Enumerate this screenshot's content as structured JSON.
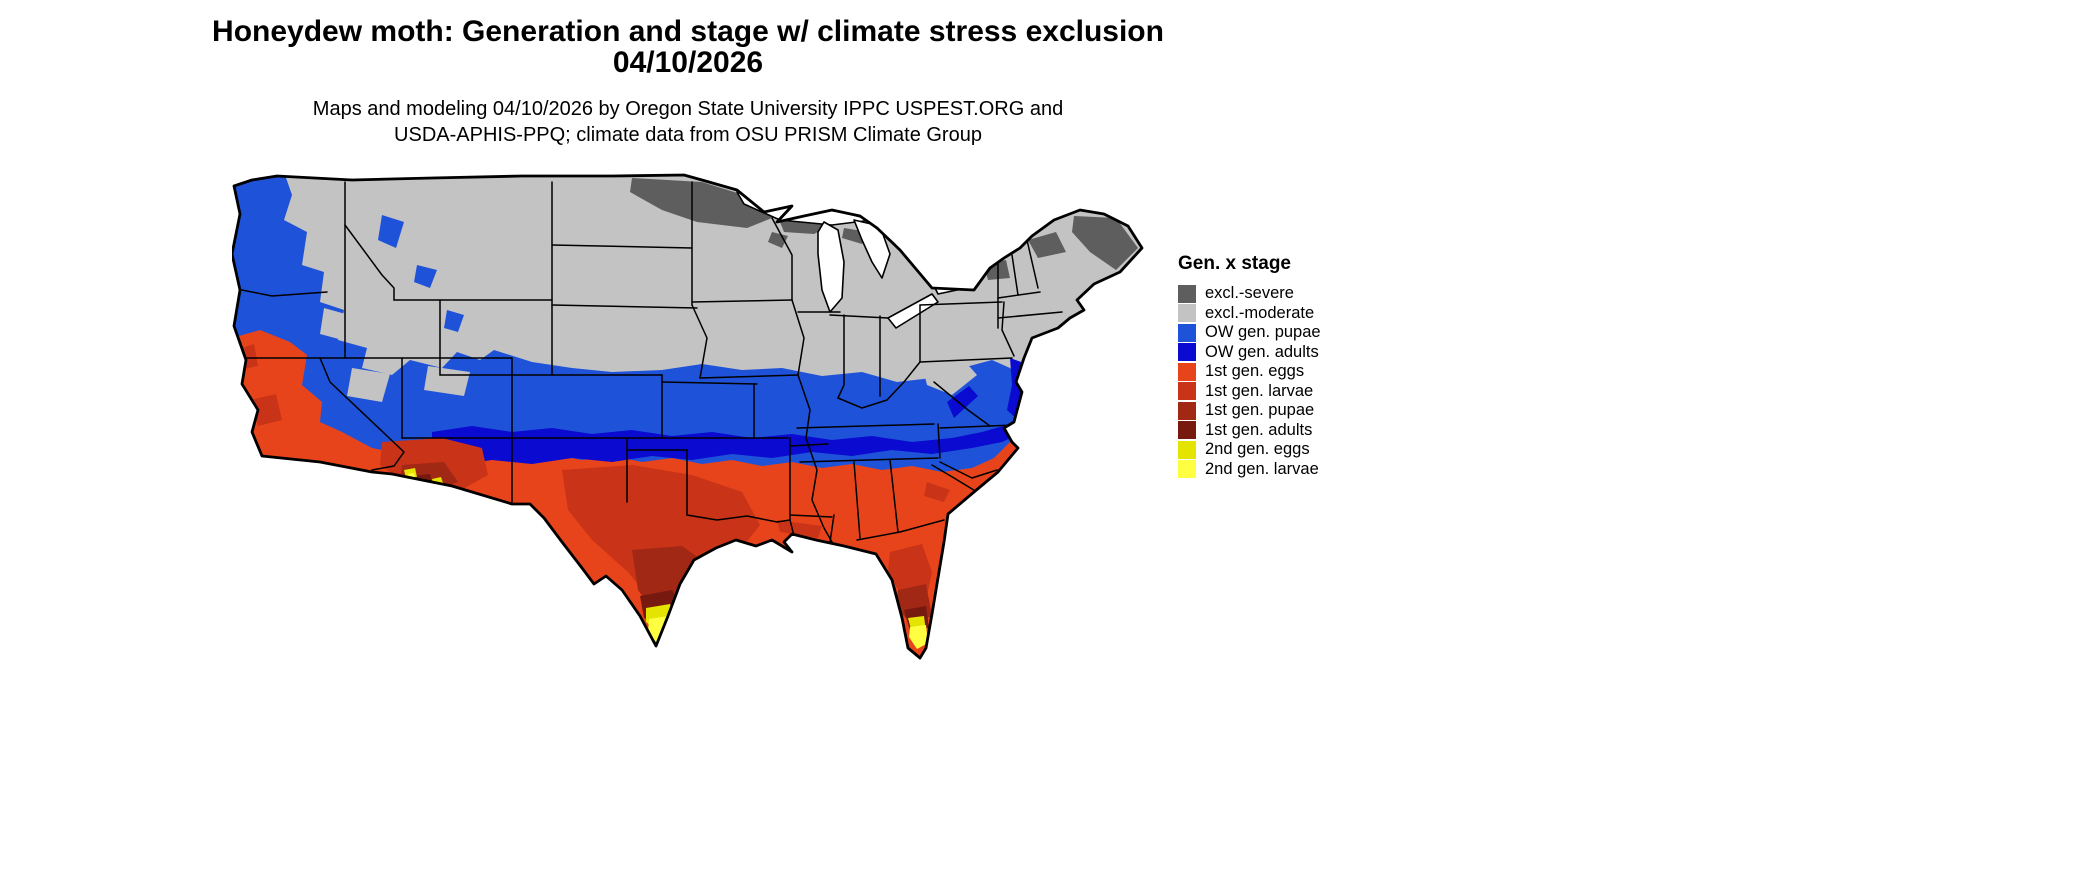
{
  "header": {
    "title_line1": "Honeydew moth: Generation and stage w/ climate stress exclusion",
    "title_line2": "04/10/2026",
    "subtitle_line1": "Maps and modeling 04/10/2026 by Oregon State University IPPC USPEST.ORG and",
    "subtitle_line2": "USDA-APHIS-PPQ; climate data from OSU PRISM Climate Group"
  },
  "legend": {
    "title": "Gen. x stage",
    "entries": [
      {
        "label": "excl.-severe",
        "color": "#5e5e5e"
      },
      {
        "label": "excl.-moderate",
        "color": "#c3c3c3"
      },
      {
        "label": "OW gen. pupae",
        "color": "#1e52d9"
      },
      {
        "label": "OW gen. adults",
        "color": "#0a0ad0"
      },
      {
        "label": "1st gen. eggs",
        "color": "#e8441b"
      },
      {
        "label": "1st gen. larvae",
        "color": "#c93318"
      },
      {
        "label": "1st gen. pupae",
        "color": "#a02815"
      },
      {
        "label": "1st gen. adults",
        "color": "#77190f"
      },
      {
        "label": "2nd gen. eggs",
        "color": "#e4e400"
      },
      {
        "label": "2nd gen. larvae",
        "color": "#ffff42"
      }
    ]
  },
  "map": {
    "water_color": "#ffffff",
    "border_color": "#000000"
  }
}
